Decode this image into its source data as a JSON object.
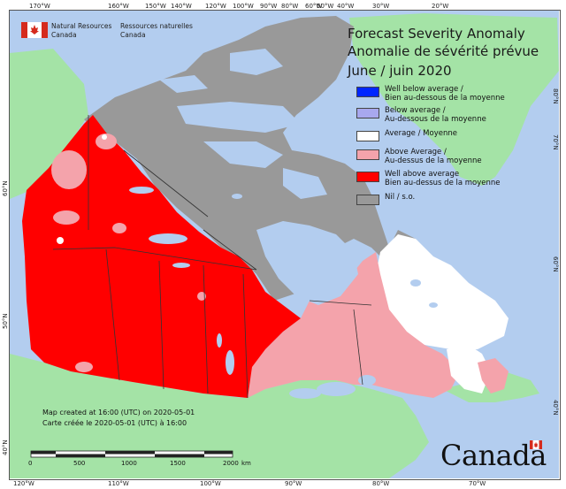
{
  "header": {
    "ministry_en_line1": "Natural Resources",
    "ministry_en_line2": "Canada",
    "ministry_fr_line1": "Ressources naturelles",
    "ministry_fr_line2": "Canada"
  },
  "title": {
    "line1": "Forecast Severity Anomaly",
    "line2": "Anomalie de sévérité prévue",
    "line3": "June / juin 2020"
  },
  "legend": [
    {
      "en": "Well below average /",
      "fr": "Bien au-dessous de la moyenne",
      "color": "#0026ff"
    },
    {
      "en": "Below average /",
      "fr": "Au-dessous de la moyenne",
      "color": "#a8a8ee"
    },
    {
      "en": "Average / Moyenne",
      "fr": "",
      "color": "#ffffff"
    },
    {
      "en": "Above Average /",
      "fr": "Au-dessus de la moyenne",
      "color": "#f4a3ab"
    },
    {
      "en": "Well above average",
      "fr": "Bien au-dessus de la moyenne",
      "color": "#ff0000"
    },
    {
      "en": "Nil / s.o.",
      "fr": "",
      "color": "#999999"
    }
  ],
  "credits": {
    "en": "Map created at 16:00 (UTC) on 2020-05-01",
    "fr": "Carte créée le 2020-05-01 (UTC) à 16:00"
  },
  "scale_bar": {
    "labels": [
      "0",
      "500",
      "1000",
      "1500",
      "2000"
    ],
    "unit": "km"
  },
  "graticule": {
    "top": [
      "170°W",
      "160°W",
      "150°W",
      "140°W",
      "120°W",
      "100°W",
      "90°W",
      "80°W",
      "60°W",
      "50°W",
      "40°W",
      "30°W",
      "20°W"
    ],
    "bottom": [
      "120°W",
      "110°W",
      "100°W",
      "90°W",
      "80°W",
      "70°W"
    ],
    "left": [
      "60°N",
      "50°N",
      "40°N"
    ],
    "right": [
      "80°N",
      "70°N",
      "60°N",
      "40°N"
    ]
  },
  "wordmark": "Canada",
  "colors": {
    "ocean": "#b3cdef",
    "land_outside": "#a4e3a6",
    "nil": "#999999",
    "above": "#f4a3ab",
    "well_above": "#ff0000",
    "average": "#ffffff"
  }
}
